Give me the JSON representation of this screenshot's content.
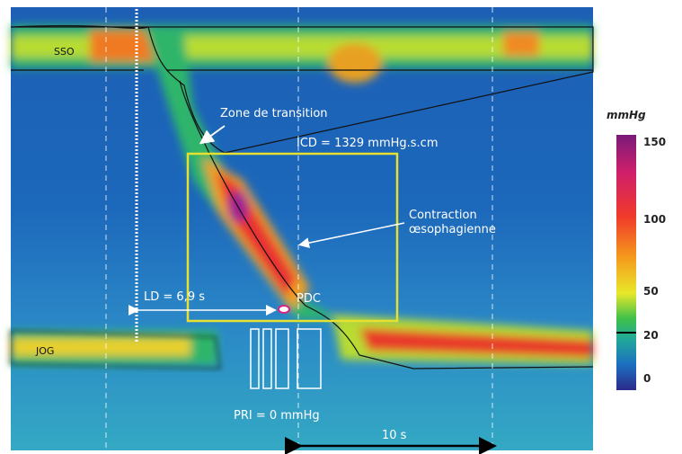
{
  "labels": {
    "sso": "SSO",
    "transition": "Zone de transition",
    "icd": "ICD = 1329 mmHg.s.cm",
    "contraction_1": "Contraction",
    "contraction_2": "œsophagienne",
    "ld": "LD = 6,9 s",
    "pdc": "PDC",
    "jog": "JOG",
    "pri": "PRI = 0 mmHg",
    "scale": "10 s"
  },
  "colorbar": {
    "title": "mmHg",
    "ticks": [
      150,
      100,
      50,
      20,
      0
    ]
  }
}
